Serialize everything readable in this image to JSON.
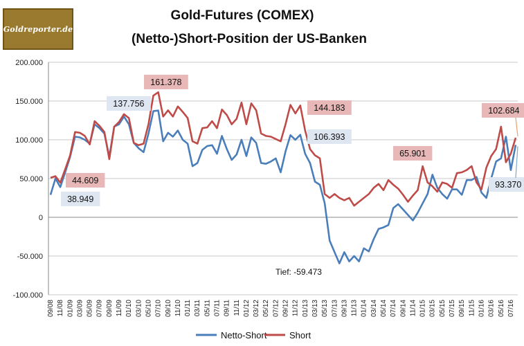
{
  "logo": {
    "text": "Goldreporter.de"
  },
  "chart_data": {
    "type": "line",
    "title": "Gold-Futures (COMEX)",
    "subtitle": "(Netto-)Short-Position  der US-Banken",
    "ylim": [
      -100000,
      200000
    ],
    "y_ticks": [
      200000,
      150000,
      100000,
      50000,
      0,
      -50000,
      -100000
    ],
    "y_tick_labels": [
      "200.000",
      "150.000",
      "100.000",
      "50.000",
      "0",
      "-50.000",
      "-100.000"
    ],
    "x_tick_labels": [
      "09/08",
      "11/08",
      "01/09",
      "03/09",
      "05/09",
      "07/09",
      "09/09",
      "11/09",
      "01/10",
      "03/10",
      "05/10",
      "07/10",
      "09/10",
      "11/10",
      "01/11",
      "03/11",
      "05/11",
      "07/11",
      "09/11",
      "11/11",
      "01/12",
      "03/12",
      "05/12",
      "07/12",
      "09/12",
      "11/12",
      "01/13",
      "03/13",
      "05/13",
      "07/13",
      "09/13",
      "11/13",
      "01/14",
      "03/14",
      "05/14",
      "07/14",
      "09/14",
      "11/14",
      "01/15",
      "03/15",
      "05/15",
      "07/15",
      "09/15",
      "11/15",
      "01/16",
      "03/16",
      "05/16",
      "07/16"
    ],
    "grid": "horizontal",
    "legend": "bottom",
    "series": [
      {
        "name": "Netto-Short",
        "color": "#4a7ebb",
        "values": [
          29000,
          50000,
          38949,
          58000,
          78000,
          104000,
          103000,
          100000,
          95000,
          120000,
          115000,
          108000,
          78000,
          117000,
          120000,
          130000,
          120000,
          96000,
          89000,
          84000,
          108000,
          137000,
          137756,
          98000,
          109000,
          104000,
          112000,
          100000,
          95000,
          66000,
          70000,
          87000,
          92000,
          93000,
          82000,
          105000,
          88000,
          74000,
          81000,
          100000,
          79000,
          103000,
          96000,
          70000,
          69000,
          72000,
          76000,
          58000,
          85000,
          106000,
          100000,
          106393,
          82000,
          70000,
          46000,
          42000,
          18000,
          -30000,
          -45000,
          -59473,
          -45000,
          -57000,
          -50000,
          -57000,
          -40000,
          -44000,
          -28000,
          -15000,
          -13000,
          -10000,
          12000,
          17000,
          10000,
          3000,
          -4000,
          6000,
          18000,
          30000,
          55000,
          38000,
          30000,
          24000,
          36000,
          36000,
          29000,
          48000,
          48000,
          52000,
          32000,
          25000,
          50000,
          72000,
          76000,
          104000,
          61000,
          93370
        ]
      },
      {
        "name": "Short",
        "color": "#be4b48",
        "values": [
          51000,
          53000,
          44609,
          62000,
          80000,
          110000,
          109000,
          105000,
          94000,
          124000,
          118000,
          110000,
          75000,
          117000,
          123000,
          133000,
          128000,
          96000,
          93000,
          95000,
          120000,
          157000,
          161378,
          130000,
          138000,
          130000,
          143000,
          136000,
          128000,
          98000,
          95000,
          115000,
          116000,
          124000,
          115000,
          139000,
          132000,
          120000,
          127000,
          148000,
          120000,
          147000,
          138000,
          108000,
          105000,
          104000,
          101000,
          98000,
          120000,
          145000,
          134000,
          144183,
          112000,
          88000,
          80000,
          76000,
          30000,
          25000,
          30000,
          25000,
          22000,
          25000,
          15000,
          20000,
          25000,
          30000,
          38000,
          43000,
          35000,
          48000,
          42000,
          37000,
          29000,
          20000,
          28000,
          35000,
          65901,
          45000,
          40000,
          33000,
          45000,
          43000,
          38000,
          57000,
          58000,
          61000,
          66000,
          45000,
          36000,
          64000,
          79000,
          88000,
          117000,
          71000,
          82000,
          102684
        ]
      }
    ],
    "annotations": [
      {
        "text": "161.378",
        "series": "Short",
        "index": 22
      },
      {
        "text": "137.756",
        "series": "Netto-Short",
        "index": 22
      },
      {
        "text": "144.183",
        "series": "Short",
        "index": 51
      },
      {
        "text": "106.393",
        "series": "Netto-Short",
        "index": 51
      },
      {
        "text": "44.609",
        "series": "Short",
        "index": 2
      },
      {
        "text": "38.949",
        "series": "Netto-Short",
        "index": 2
      },
      {
        "text": "65.901",
        "series": "Short",
        "index": 76
      },
      {
        "text": "102.684",
        "series": "Short",
        "index": 95
      },
      {
        "text": "93.370",
        "series": "Netto-Short",
        "index": 95
      },
      {
        "text": "Tief: -59.473",
        "series": "Netto-Short",
        "index": 59
      }
    ]
  }
}
